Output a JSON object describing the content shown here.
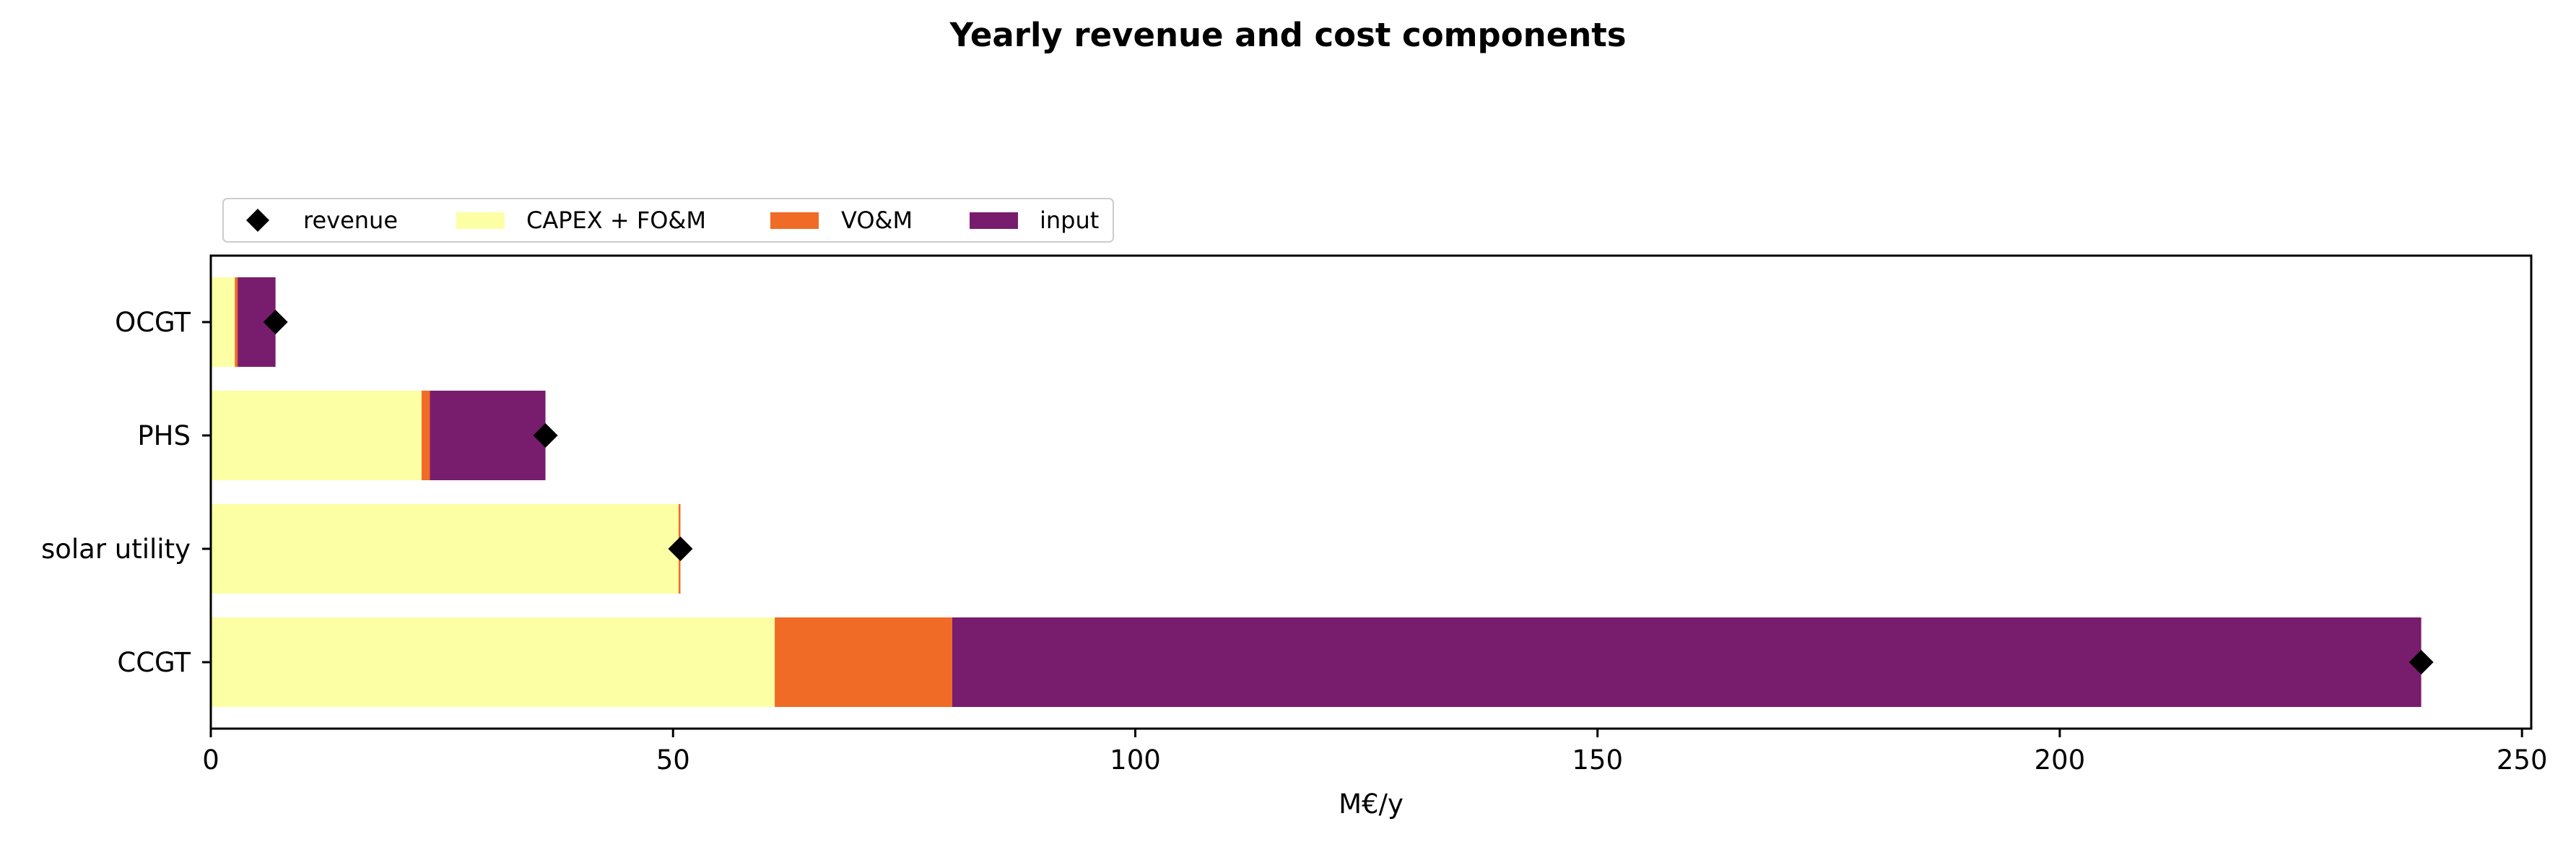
{
  "chart_data": {
    "type": "bar",
    "orientation": "horizontal",
    "stacked": true,
    "title": "Yearly revenue and cost components",
    "xlabel": "M€/y",
    "ylabel": "",
    "xlim": [
      0,
      251
    ],
    "xticks": [
      0,
      50,
      100,
      150,
      200,
      250
    ],
    "grid": false,
    "legend_position": "top-left, above plot",
    "categories": [
      "OCGT",
      "PHS",
      "solar utility",
      "CCGT"
    ],
    "series": [
      {
        "name": "CAPEX + FO&M",
        "color": "#fcffa4",
        "values": [
          2.6,
          22.8,
          50.6,
          61.0
        ]
      },
      {
        "name": "VO&M",
        "color": "#f06b25",
        "values": [
          0.3,
          0.9,
          0.2,
          19.2
        ]
      },
      {
        "name": "input",
        "color": "#781c6d",
        "values": [
          4.1,
          12.5,
          0.0,
          158.9
        ]
      }
    ],
    "markers": {
      "name": "revenue",
      "color": "#000000",
      "shape": "diamond",
      "values": [
        7.0,
        36.2,
        50.8,
        239.1
      ]
    }
  }
}
